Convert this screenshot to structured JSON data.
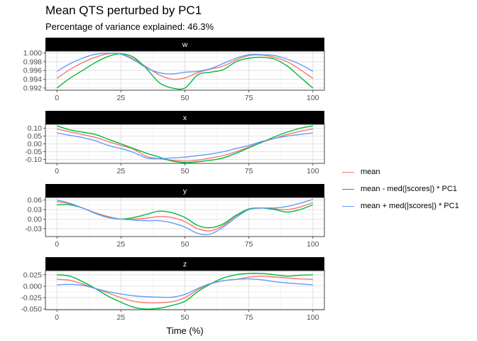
{
  "title": "Mean QTS perturbed by PC1",
  "subtitle": "Percentage of variance explained: 46.3%",
  "chart_data": {
    "type": "line",
    "xlabel": "Time (%)",
    "ylabel": "",
    "xlim": [
      0,
      100
    ],
    "x_ticks": [
      0,
      25,
      50,
      75,
      100
    ],
    "grid": true,
    "legend_position": "right",
    "series_names": [
      "mean",
      "mean - med(|scores|) * PC1",
      "mean + med(|scores|) * PC1"
    ],
    "colors": [
      "#F8766D",
      "#00BA38",
      "#619CFF"
    ],
    "x": [
      0,
      5,
      10,
      15,
      20,
      25,
      30,
      35,
      40,
      45,
      50,
      55,
      60,
      65,
      70,
      75,
      80,
      85,
      90,
      95,
      100
    ],
    "panels": [
      {
        "strip": "w",
        "ylim": [
          0.9915,
          1.0004
        ],
        "y_ticks": [
          "0.992",
          "0.994",
          "0.996",
          "0.998",
          "1.000"
        ],
        "y_tick_values": [
          0.992,
          0.994,
          0.996,
          0.998,
          1.0
        ],
        "series": [
          {
            "name": "mean",
            "values": [
              0.9942,
              0.9962,
              0.9978,
              0.999,
              0.9998,
              0.9998,
              0.9986,
              0.9968,
              0.995,
              0.994,
              0.9943,
              0.9955,
              0.9963,
              0.997,
              0.9984,
              0.9994,
              0.9995,
              0.999,
              0.998,
              0.9962,
              0.9942
            ]
          },
          {
            "name": "mean - med(|scores|) * PC1",
            "values": [
              0.992,
              0.9942,
              0.996,
              0.9978,
              0.9992,
              0.9998,
              0.999,
              0.9964,
              0.9932,
              0.992,
              0.992,
              0.995,
              0.9956,
              0.9962,
              0.998,
              0.9988,
              0.999,
              0.9986,
              0.997,
              0.9945,
              0.992
            ]
          },
          {
            "name": "mean + med(|scores|) * PC1",
            "values": [
              0.9958,
              0.9975,
              0.9988,
              0.9997,
              0.9999,
              0.9997,
              0.9984,
              0.9966,
              0.9955,
              0.9952,
              0.9956,
              0.9958,
              0.9964,
              0.9976,
              0.9988,
              0.9996,
              0.9996,
              0.9994,
              0.9986,
              0.9974,
              0.9958
            ]
          }
        ]
      },
      {
        "strip": "x",
        "ylim": [
          -0.125,
          0.125
        ],
        "y_ticks": [
          "-0.10",
          "-0.05",
          "0.00",
          "0.05",
          "0.10"
        ],
        "y_tick_values": [
          -0.1,
          -0.05,
          0.0,
          0.05,
          0.1
        ],
        "series": [
          {
            "name": "mean",
            "values": [
              0.095,
              0.077,
              0.06,
              0.041,
              0.015,
              -0.01,
              -0.035,
              -0.08,
              -0.095,
              -0.105,
              -0.11,
              -0.105,
              -0.09,
              -0.075,
              -0.05,
              -0.02,
              0.01,
              0.035,
              0.06,
              0.08,
              0.095
            ]
          },
          {
            "name": "mean - med(|scores|) * PC1",
            "values": [
              0.115,
              0.09,
              0.075,
              0.06,
              0.03,
              0.0,
              -0.03,
              -0.06,
              -0.085,
              -0.11,
              -0.12,
              -0.115,
              -0.105,
              -0.09,
              -0.06,
              -0.025,
              0.01,
              0.045,
              0.075,
              0.1,
              0.115
            ]
          },
          {
            "name": "mean + med(|scores|) * PC1",
            "values": [
              0.07,
              0.055,
              0.04,
              0.02,
              -0.01,
              -0.03,
              -0.055,
              -0.09,
              -0.095,
              -0.09,
              -0.085,
              -0.075,
              -0.065,
              -0.05,
              -0.03,
              -0.01,
              0.015,
              0.035,
              0.05,
              0.06,
              0.07
            ]
          }
        ]
      },
      {
        "strip": "y",
        "ylim": [
          -0.055,
          0.068
        ],
        "y_ticks": [
          "-0.03",
          "0.00",
          "0.03",
          "0.06"
        ],
        "y_tick_values": [
          -0.03,
          0.0,
          0.03,
          0.06
        ],
        "series": [
          {
            "name": "mean",
            "values": [
              0.055,
              0.048,
              0.035,
              0.02,
              0.008,
              0.0,
              0.0,
              0.003,
              0.008,
              0.005,
              -0.008,
              -0.03,
              -0.037,
              -0.02,
              0.01,
              0.03,
              0.035,
              0.032,
              0.03,
              0.038,
              0.052
            ]
          },
          {
            "name": "mean - med(|scores|) * PC1",
            "values": [
              0.045,
              0.045,
              0.035,
              0.018,
              0.005,
              0.0,
              0.005,
              0.015,
              0.025,
              0.02,
              0.005,
              -0.02,
              -0.027,
              -0.015,
              0.012,
              0.032,
              0.035,
              0.03,
              0.022,
              0.03,
              0.045
            ]
          },
          {
            "name": "mean + med(|scores|) * PC1",
            "values": [
              0.06,
              0.05,
              0.035,
              0.018,
              0.005,
              0.0,
              -0.003,
              -0.005,
              -0.005,
              -0.012,
              -0.025,
              -0.045,
              -0.047,
              -0.025,
              0.005,
              0.03,
              0.035,
              0.035,
              0.04,
              0.05,
              0.062
            ]
          }
        ]
      },
      {
        "strip": "z",
        "ylim": [
          -0.0515,
          0.034
        ],
        "y_ticks": [
          "-0.050",
          "-0.025",
          "0.000",
          "0.025"
        ],
        "y_tick_values": [
          -0.05,
          -0.025,
          0.0,
          0.025
        ],
        "series": [
          {
            "name": "mean",
            "values": [
              0.015,
              0.013,
              0.005,
              -0.005,
              -0.015,
              -0.025,
              -0.033,
              -0.036,
              -0.036,
              -0.034,
              -0.025,
              -0.008,
              0.005,
              0.012,
              0.015,
              0.02,
              0.022,
              0.02,
              0.018,
              0.016,
              0.015
            ]
          },
          {
            "name": "mean - med(|scores|) * PC1",
            "values": [
              0.025,
              0.022,
              0.01,
              -0.005,
              -0.022,
              -0.035,
              -0.046,
              -0.05,
              -0.048,
              -0.042,
              -0.033,
              -0.012,
              0.005,
              0.018,
              0.025,
              0.028,
              0.028,
              0.025,
              0.022,
              0.024,
              0.025
            ]
          },
          {
            "name": "mean + med(|scores|) * PC1",
            "values": [
              0.003,
              0.004,
              0.002,
              -0.005,
              -0.012,
              -0.017,
              -0.021,
              -0.023,
              -0.024,
              -0.024,
              -0.018,
              -0.005,
              0.006,
              0.012,
              0.015,
              0.016,
              0.014,
              0.01,
              0.007,
              0.005,
              0.003
            ]
          }
        ]
      }
    ]
  }
}
